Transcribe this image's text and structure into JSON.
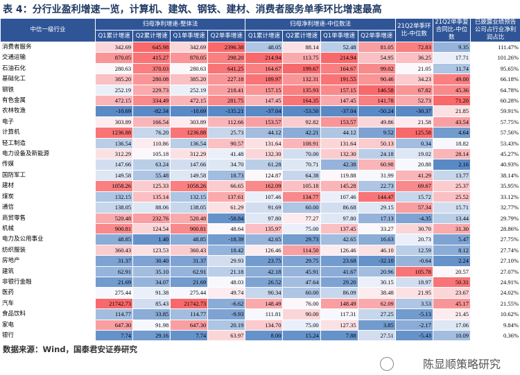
{
  "header": {
    "title": "表 4：分行业盈利增速一览，计算机、建筑、钢铁、建材、消费者服务单季环比增速最高"
  },
  "table": {
    "group_headers": [
      "中信一级行业",
      "归母净利增速-整体法",
      "归母净利增速-中位数法",
      "21Q2单季环比-中位数",
      "21Q2单季复合同比-中位数",
      "已披露业绩预告公司占行业净利润占比"
    ],
    "sub_headers": [
      "Q1累计增速",
      "Q2累计增速",
      "Q1单季增速",
      "Q2单季增速",
      "Q1累计增速",
      "Q2累计增速",
      "Q1单季增速",
      "Q2单季增速"
    ],
    "rows": [
      [
        "消费者服务",
        "342.69",
        "645.98",
        "342.69",
        "2396.38",
        "48.05",
        "88.14",
        "52.48",
        "81.05",
        "72.83",
        "9.35",
        "111.47%"
      ],
      [
        "交通运输",
        "870.05",
        "415.27",
        "870.05",
        "298.20",
        "214.94",
        "113.75",
        "214.94",
        "54.95",
        "36.25",
        "17.71",
        "101.26%"
      ],
      [
        "石油石化",
        "280.63",
        "370.03",
        "280.63",
        "641.25",
        "164.67",
        "199.67",
        "164.67",
        "99.02",
        "21.05",
        "11.74",
        "95.65%"
      ],
      [
        "基础化工",
        "385.20",
        "280.08",
        "385.20",
        "227.18",
        "189.97",
        "132.31",
        "191.55",
        "90.46",
        "34.23",
        "49.00",
        "66.18%"
      ],
      [
        "钢铁",
        "252.19",
        "229.73",
        "252.19",
        "218.41",
        "157.15",
        "135.93",
        "157.15",
        "146.58",
        "67.82",
        "45.36",
        "64.78%"
      ],
      [
        "有色金属",
        "472.15",
        "334.49",
        "472.15",
        "281.75",
        "147.45",
        "164.35",
        "147.45",
        "141.78",
        "52.73",
        "71.20",
        "60.28%"
      ],
      [
        "农林牧渔",
        "-10.69",
        "-82.34",
        "-10.69",
        "-135.21",
        "-37.04",
        "-53.50",
        "-37.04",
        "-50.24",
        "-30.37",
        "21.85",
        "59.91%"
      ],
      [
        "电子",
        "303.89",
        "166.54",
        "303.89",
        "112.66",
        "153.57",
        "92.82",
        "153.57",
        "49.86",
        "21.58",
        "43.54",
        "57.75%"
      ],
      [
        "计算机",
        "1236.88",
        "76.20",
        "1236.88",
        "25.73",
        "44.12",
        "42.21",
        "44.12",
        "9.52",
        "125.58",
        "4.64",
        "57.56%"
      ],
      [
        "轻工制造",
        "136.54",
        "110.86",
        "136.54",
        "90.57",
        "131.64",
        "108.91",
        "131.64",
        "50.13",
        "0.34",
        "18.82",
        "53.43%"
      ],
      [
        "电力设备及新能源",
        "312.29",
        "105.18",
        "312.29",
        "41.48",
        "132.30",
        "70.00",
        "132.30",
        "24.18",
        "19.02",
        "28.14",
        "45.27%"
      ],
      [
        "传媒",
        "147.66",
        "63.24",
        "147.66",
        "34.70",
        "61.28",
        "70.71",
        "42.38",
        "60.98",
        "20.88",
        "2.16",
        "40.93%"
      ],
      [
        "国防军工",
        "149.58",
        "55.48",
        "149.58",
        "18.73",
        "124.87",
        "64.38",
        "119.88",
        "31.99",
        "41.29",
        "13.77",
        "38.14%"
      ],
      [
        "建材",
        "1058.26",
        "125.33",
        "1058.26",
        "66.65",
        "162.09",
        "105.18",
        "145.28",
        "22.73",
        "69.67",
        "25.37",
        "35.95%"
      ],
      [
        "煤炭",
        "132.15",
        "135.14",
        "132.15",
        "137.61",
        "107.46",
        "134.77",
        "107.46",
        "144.47",
        "15.72",
        "25.52",
        "33.12%"
      ],
      [
        "通信",
        "138.05",
        "88.06",
        "138.05",
        "61.29",
        "91.69",
        "60.00",
        "86.68",
        "29.15",
        "57.34",
        "15.71",
        "32.77%"
      ],
      [
        "商贸零售",
        "520.48",
        "232.76",
        "520.48",
        "-58.84",
        "97.80",
        "77.27",
        "97.80",
        "17.13",
        "-4.35",
        "13.44",
        "29.79%"
      ],
      [
        "机械",
        "900.81",
        "124.54",
        "900.81",
        "48.64",
        "135.97",
        "75.00",
        "137.45",
        "33.27",
        "30.70",
        "31.30",
        "28.86%"
      ],
      [
        "电力及公用事业",
        "48.85",
        "1.40",
        "48.85",
        "-18.39",
        "42.65",
        "29.73",
        "42.65",
        "16.63",
        "20.73",
        "5.47",
        "27.75%"
      ],
      [
        "纺织服装",
        "360.43",
        "123.53",
        "360.43",
        "18.42",
        "126.46",
        "114.50",
        "126.46",
        "46.10",
        "12.59",
        "8.12",
        "27.74%"
      ],
      [
        "房地产",
        "31.37",
        "30.40",
        "31.37",
        "29.93",
        "23.75",
        "29.75",
        "23.68",
        "-32.10",
        "-0.64",
        "2.24",
        "27.10%"
      ],
      [
        "建筑",
        "62.91",
        "35.10",
        "62.91",
        "21.18",
        "42.18",
        "45.91",
        "41.67",
        "20.96",
        "105.78",
        "20.57",
        "27.07%"
      ],
      [
        "非银行金融",
        "21.69",
        "34.07",
        "21.69",
        "48.03",
        "26.52",
        "47.64",
        "29.20",
        "30.15",
        "18.97",
        "50.31",
        "24.91%"
      ],
      [
        "医药",
        "275.44",
        "91.38",
        "275.44",
        "49.74",
        "90.34",
        "60.00",
        "86.09",
        "38.48",
        "21.95",
        "23.67",
        "24.02%"
      ],
      [
        "汽车",
        "21742.73",
        "85.43",
        "21742.73",
        "-6.62",
        "148.49",
        "76.00",
        "148.49",
        "62.09",
        "3.53",
        "45.17",
        "21.55%"
      ],
      [
        "食品饮料",
        "114.77",
        "33.85",
        "114.77",
        "-9.93",
        "111.81",
        "90.00",
        "117.31",
        "27.25",
        "-5.13",
        "21.45",
        "10.62%"
      ],
      [
        "家电",
        "647.30",
        "91.98",
        "647.30",
        "20.19",
        "134.70",
        "75.00",
        "127.35",
        "3.85",
        "-2.17",
        "17.06",
        "9.84%"
      ],
      [
        "银行",
        "7.74",
        "29.16",
        "7.74",
        "63.97",
        "8.00",
        "15.24",
        "7.88",
        "27.51",
        "-5.43",
        "10.09",
        "0.36%"
      ]
    ]
  },
  "footer": {
    "source": "数据来源：Wind，国泰君安证券研究",
    "watermark": "陈显顺策略研究"
  }
}
